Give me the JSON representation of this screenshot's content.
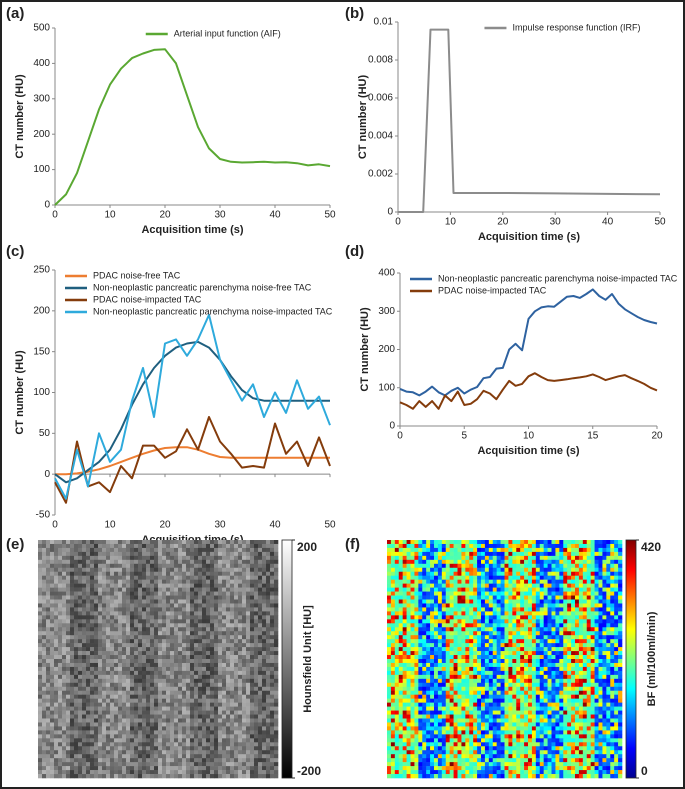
{
  "chart_data": [
    {
      "type": "line",
      "panel_label": "(a)",
      "xlabel": "Acquisition time (s)",
      "ylabel": "CT number (HU)",
      "xlim": [
        0,
        50
      ],
      "xticks": [
        0,
        10,
        20,
        30,
        40,
        50
      ],
      "ylim": [
        0,
        500
      ],
      "yticks": [
        0,
        100,
        200,
        300,
        400,
        500
      ],
      "legend": "upper right",
      "x": [
        0,
        2,
        4,
        6,
        8,
        10,
        12,
        14,
        16,
        18,
        20,
        22,
        24,
        26,
        28,
        30,
        32,
        34,
        36,
        38,
        40,
        42,
        44,
        46,
        48,
        50
      ],
      "series": [
        {
          "name": "Arterial input function (AIF)",
          "color": "#5aa832",
          "values": [
            0,
            30,
            90,
            180,
            270,
            340,
            385,
            415,
            428,
            438,
            440,
            400,
            310,
            220,
            160,
            130,
            122,
            120,
            121,
            122,
            120,
            121,
            118,
            112,
            115,
            110
          ]
        }
      ]
    },
    {
      "type": "line",
      "panel_label": "(b)",
      "xlabel": "Acquisition time (s)",
      "ylabel": "CT number (HU)",
      "xlim": [
        0,
        50
      ],
      "xticks": [
        0,
        10,
        20,
        30,
        40,
        50
      ],
      "ylim": [
        0,
        0.01
      ],
      "yticks": [
        0,
        0.002,
        0.004,
        0.006,
        0.008,
        0.01
      ],
      "legend": "upper right",
      "x": [
        0,
        4.8,
        6.2,
        9.6,
        10.6,
        20,
        30,
        40,
        50
      ],
      "series": [
        {
          "name": "Impulse response function (IRF)",
          "color": "#8c8c8c",
          "values": [
            0,
            0,
            0.0096,
            0.0096,
            0.001,
            0.001,
            0.00098,
            0.00095,
            0.00093
          ]
        }
      ]
    },
    {
      "type": "line",
      "panel_label": "(c)",
      "xlabel": "Acquisition time (s)",
      "ylabel": "CT number (HU)",
      "xlim": [
        0,
        50
      ],
      "xticks": [
        0,
        10,
        20,
        30,
        40,
        50
      ],
      "ylim": [
        -50,
        250
      ],
      "yticks": [
        -50,
        0,
        50,
        100,
        150,
        200,
        250
      ],
      "legend": "upper left",
      "x": [
        0,
        2,
        4,
        6,
        8,
        10,
        12,
        14,
        16,
        18,
        20,
        22,
        24,
        26,
        28,
        30,
        32,
        34,
        36,
        38,
        40,
        42,
        44,
        46,
        48,
        50
      ],
      "series": [
        {
          "name": "PDAC noise-free TAC",
          "color": "#ed7d31",
          "values": [
            0,
            0,
            1,
            3,
            6,
            10,
            15,
            20,
            25,
            29,
            32,
            33,
            33,
            30,
            25,
            21,
            20,
            20,
            20,
            20,
            20,
            20,
            20,
            20,
            20,
            20
          ]
        },
        {
          "name": "Non-neoplastic pancreatic parenchyma noise-free TAC",
          "color": "#1f5f7f",
          "values": [
            0,
            -10,
            -5,
            5,
            15,
            30,
            55,
            85,
            110,
            130,
            145,
            155,
            160,
            162,
            155,
            140,
            120,
            103,
            93,
            90,
            90,
            90,
            90,
            90,
            90,
            90
          ]
        },
        {
          "name": "PDAC noise-impacted TAC",
          "color": "#843c0c",
          "values": [
            -10,
            -35,
            40,
            -15,
            -10,
            -22,
            10,
            -5,
            35,
            35,
            20,
            28,
            55,
            30,
            70,
            40,
            25,
            8,
            10,
            8,
            62,
            25,
            40,
            10,
            45,
            10
          ]
        },
        {
          "name": "Non-neoplastic pancreatic parenchyma noise-impacted TAC",
          "color": "#2eaadc",
          "values": [
            -5,
            -30,
            30,
            -15,
            50,
            15,
            30,
            90,
            130,
            70,
            160,
            165,
            145,
            165,
            195,
            140,
            115,
            90,
            110,
            70,
            100,
            75,
            115,
            80,
            95,
            60
          ]
        }
      ]
    },
    {
      "type": "line",
      "panel_label": "(d)",
      "xlabel": "Acquisition time (s)",
      "ylabel": "CT number (HU)",
      "xlim": [
        0,
        20
      ],
      "xticks": [
        0,
        5,
        10,
        15,
        20
      ],
      "ylim": [
        0,
        400
      ],
      "yticks": [
        0,
        100,
        200,
        300,
        400
      ],
      "legend": "upper left",
      "x": [
        0,
        0.5,
        1,
        1.5,
        2,
        2.5,
        3,
        3.5,
        4,
        4.5,
        5,
        5.5,
        6,
        6.5,
        7,
        7.5,
        8,
        8.5,
        9,
        9.5,
        10,
        10.5,
        11,
        11.5,
        12,
        12.5,
        13,
        13.5,
        14,
        14.5,
        15,
        15.5,
        16,
        16.5,
        17,
        17.5,
        18,
        18.5,
        19,
        19.5,
        20
      ],
      "series": [
        {
          "name": "Non-neoplastic pancreatic parenchyma noise-impacted TAC",
          "color": "#2e62a0",
          "values": [
            97,
            90,
            88,
            80,
            90,
            103,
            88,
            80,
            92,
            100,
            85,
            95,
            102,
            125,
            128,
            150,
            152,
            200,
            215,
            198,
            280,
            300,
            310,
            313,
            312,
            325,
            338,
            340,
            335,
            345,
            357,
            340,
            330,
            345,
            320,
            305,
            295,
            285,
            277,
            272,
            268
          ]
        },
        {
          "name": "PDAC noise-impacted TAC",
          "color": "#843c0c",
          "values": [
            62,
            55,
            45,
            65,
            50,
            65,
            45,
            80,
            65,
            90,
            55,
            58,
            70,
            92,
            85,
            70,
            95,
            118,
            105,
            110,
            130,
            138,
            128,
            120,
            118,
            120,
            122,
            125,
            127,
            130,
            135,
            128,
            120,
            125,
            130,
            133,
            125,
            118,
            110,
            100,
            93
          ]
        }
      ]
    },
    {
      "type": "heatmap",
      "panel_label": "(e)",
      "colorbar_label": "Hounsfield Unit [HU]",
      "colormap": "gray",
      "clim": [
        -200,
        200
      ],
      "cticks": [
        -200,
        200
      ]
    },
    {
      "type": "heatmap",
      "panel_label": "(f)",
      "colorbar_label": "BF (ml/100ml/min)",
      "colormap": "jet",
      "clim": [
        0,
        420
      ],
      "cticks": [
        0,
        420
      ]
    }
  ]
}
